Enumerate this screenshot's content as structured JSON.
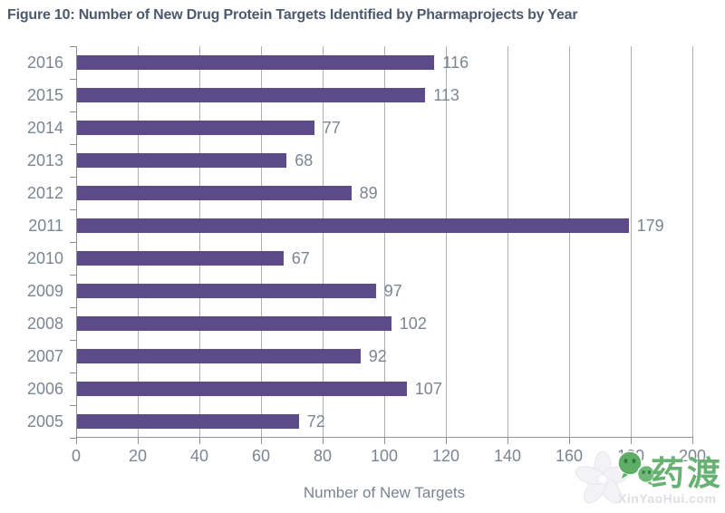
{
  "figure": {
    "title": "Figure 10: Number of New Drug Protein Targets Identified by Pharmaprojects by Year"
  },
  "chart_data": {
    "type": "bar",
    "orientation": "horizontal",
    "title": "Figure 10: Number of New Drug Protein Targets Identified by Pharmaprojects by Year",
    "categories": [
      "2016",
      "2015",
      "2014",
      "2013",
      "2012",
      "2011",
      "2010",
      "2009",
      "2008",
      "2007",
      "2006",
      "2005"
    ],
    "values": [
      116,
      113,
      77,
      68,
      89,
      179,
      67,
      97,
      102,
      92,
      107,
      72
    ],
    "xlabel": "Number of New Targets",
    "ylabel": "",
    "x_ticks": [
      0,
      20,
      40,
      60,
      80,
      100,
      120,
      140,
      160,
      180,
      200
    ],
    "xlim": [
      0,
      200
    ],
    "grid": true,
    "value_labels_shown": true,
    "bar_color": "#5c4a89",
    "label_color": "#7d8591",
    "gridline_color": "#abadb2",
    "axis_color": "#8d9198",
    "title_color": "#4d5a6d"
  },
  "watermark": {
    "brand_text": "药渡",
    "url_text": "XinYaoHui.com",
    "green": "#69b173"
  }
}
